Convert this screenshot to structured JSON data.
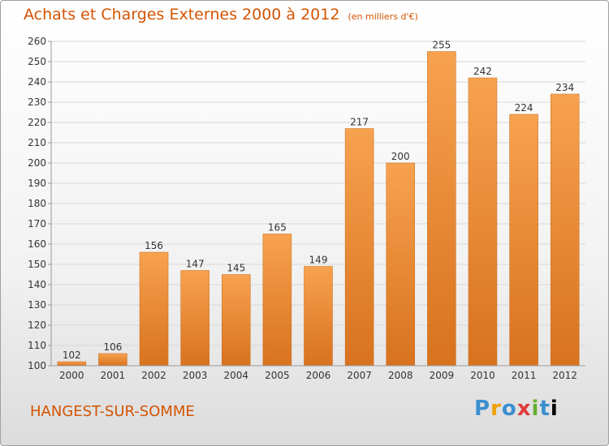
{
  "title": "Achats et Charges Externes 2000 à 2012",
  "subtitle": "(en milliers d'€)",
  "commune": "HANGEST-SUR-SOMME",
  "logo": "Proxiti",
  "chart_data": {
    "type": "bar",
    "title": "Achats et Charges Externes 2000 à 2012",
    "subtitle": "(en milliers d'€)",
    "categories": [
      "2000",
      "2001",
      "2002",
      "2003",
      "2004",
      "2005",
      "2006",
      "2007",
      "2008",
      "2009",
      "2010",
      "2011",
      "2012"
    ],
    "values": [
      102,
      106,
      156,
      147,
      145,
      165,
      149,
      217,
      200,
      255,
      242,
      224,
      234
    ],
    "ylim": [
      100,
      260
    ],
    "yticks": [
      100,
      110,
      120,
      130,
      140,
      150,
      160,
      170,
      180,
      190,
      200,
      210,
      220,
      230,
      240,
      250,
      260
    ],
    "grid": true,
    "bar_color": "#f0913a",
    "bar_color_dark": "#d8721e"
  }
}
